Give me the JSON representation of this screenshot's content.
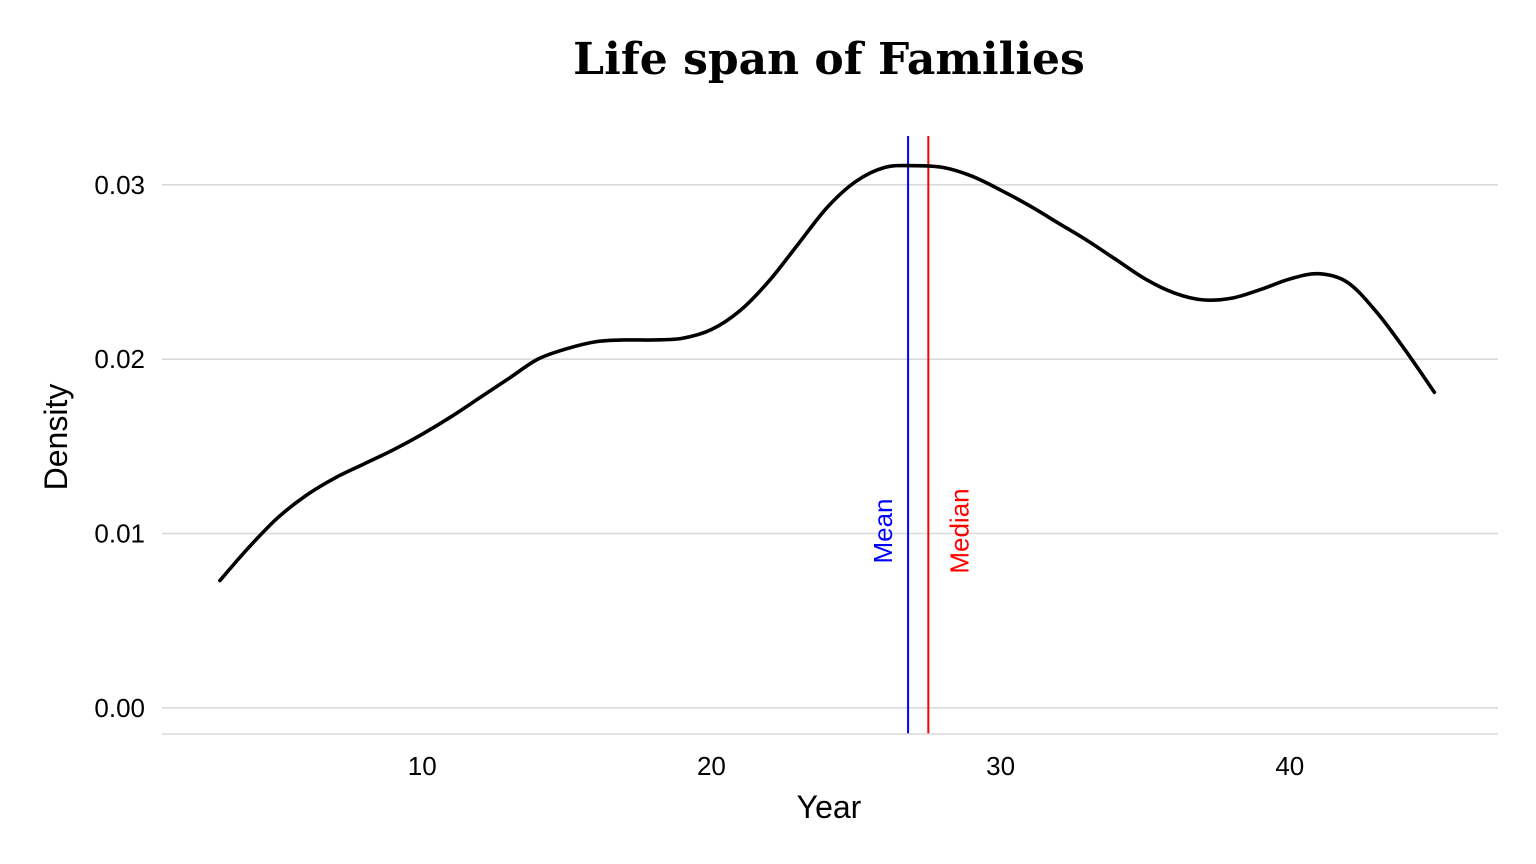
{
  "chart_data": {
    "type": "line",
    "title": "Life span of Families",
    "xlabel": "Year",
    "ylabel": "Density",
    "xlim": [
      1,
      47.2
    ],
    "ylim": [
      -0.0015,
      0.0328
    ],
    "x_ticks": [
      10,
      20,
      30,
      40
    ],
    "x_tick_labels": [
      "10",
      "20",
      "30",
      "40"
    ],
    "y_ticks": [
      0.0,
      0.01,
      0.02,
      0.03
    ],
    "y_tick_labels": [
      "0.00",
      "0.01",
      "0.02",
      "0.03"
    ],
    "grid": "horizontal",
    "series": [
      {
        "color": "#000000",
        "x": [
          3.0,
          4.0,
          5.0,
          6.0,
          7.0,
          8.0,
          9.0,
          10.0,
          11.0,
          12.0,
          13.0,
          14.0,
          15.0,
          16.0,
          17.0,
          18.0,
          19.0,
          20.0,
          21.0,
          22.0,
          23.0,
          24.0,
          25.0,
          26.0,
          27.0,
          28.0,
          29.0,
          30.0,
          31.0,
          32.0,
          33.0,
          34.0,
          35.0,
          36.0,
          37.0,
          38.0,
          39.0,
          40.0,
          41.0,
          42.0,
          43.0,
          44.0,
          45.0
        ],
        "y": [
          0.0073,
          0.0092,
          0.0109,
          0.0122,
          0.0132,
          0.014,
          0.0148,
          0.0157,
          0.0167,
          0.0178,
          0.0189,
          0.02,
          0.0206,
          0.021,
          0.0211,
          0.0211,
          0.0212,
          0.0217,
          0.0228,
          0.0245,
          0.0266,
          0.0287,
          0.0302,
          0.031,
          0.0311,
          0.031,
          0.0305,
          0.0297,
          0.0288,
          0.0278,
          0.0268,
          0.0257,
          0.0246,
          0.0238,
          0.0234,
          0.0235,
          0.024,
          0.0246,
          0.0249,
          0.0244,
          0.0227,
          0.0205,
          0.0181
        ]
      }
    ],
    "reference_lines": [
      {
        "label": "Mean",
        "x": 26.8,
        "color": "#0000ff"
      },
      {
        "label": "Median",
        "x": 27.5,
        "color": "#ff0000"
      }
    ]
  }
}
